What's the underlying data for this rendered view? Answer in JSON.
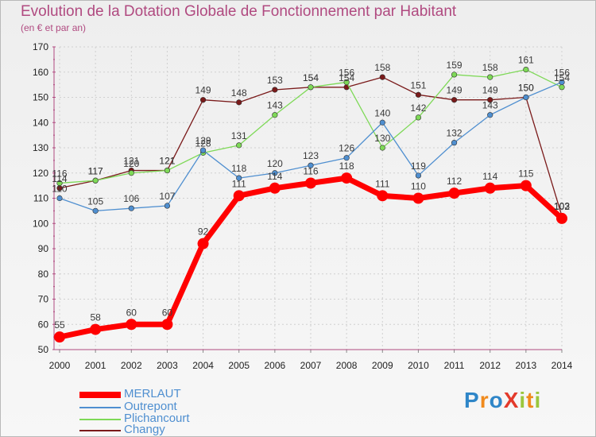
{
  "title": "Evolution de la Dotation Globale de Fonctionnement par Habitant",
  "subtitle": "(en € et par an)",
  "logo": {
    "text": "ProXiti",
    "letters": [
      {
        "ch": "P",
        "color": "#2f86c8"
      },
      {
        "ch": "r",
        "color": "#f08a1c"
      },
      {
        "ch": "o",
        "color": "#2f86c8"
      },
      {
        "ch": "X",
        "color": "#e33a2b"
      },
      {
        "ch": "i",
        "color": "#9bc63c"
      },
      {
        "ch": "t",
        "color": "#f08a1c"
      },
      {
        "ch": "i",
        "color": "#9bc63c"
      }
    ]
  },
  "chart_data": {
    "type": "line",
    "title": "Evolution de la Dotation Globale de Fonctionnement par Habitant",
    "subtitle": "(en € et par an)",
    "xlabel": "",
    "ylabel": "",
    "x": [
      "2000",
      "2001",
      "2002",
      "2003",
      "2004",
      "2005",
      "2006",
      "2007",
      "2008",
      "2009",
      "2010",
      "2011",
      "2012",
      "2013",
      "2014"
    ],
    "yticks": [
      50,
      60,
      70,
      80,
      90,
      100,
      110,
      120,
      130,
      140,
      150,
      160,
      170
    ],
    "ylim": [
      50,
      170
    ],
    "grid": true,
    "legend_position": "bottom-left",
    "series": [
      {
        "name": "MERLAUT",
        "color": "#ff0000",
        "values": [
          55,
          58,
          60,
          60,
          92,
          111,
          114,
          116,
          118,
          111,
          110,
          112,
          114,
          115,
          102
        ]
      },
      {
        "name": "Outrepont",
        "color": "#4f8fd0",
        "values": [
          110,
          105,
          106,
          107,
          129,
          118,
          120,
          123,
          126,
          140,
          119,
          132,
          143,
          150,
          156
        ]
      },
      {
        "name": "Plichancourt",
        "color": "#7ed957",
        "values": [
          116,
          117,
          120,
          121,
          128,
          131,
          143,
          154,
          156,
          130,
          142,
          159,
          158,
          161,
          154
        ]
      },
      {
        "name": "Changy",
        "color": "#7a1a1a",
        "values": [
          114,
          117,
          121,
          121,
          149,
          148,
          153,
          154,
          154,
          158,
          151,
          149,
          149,
          150,
          103
        ]
      }
    ]
  }
}
